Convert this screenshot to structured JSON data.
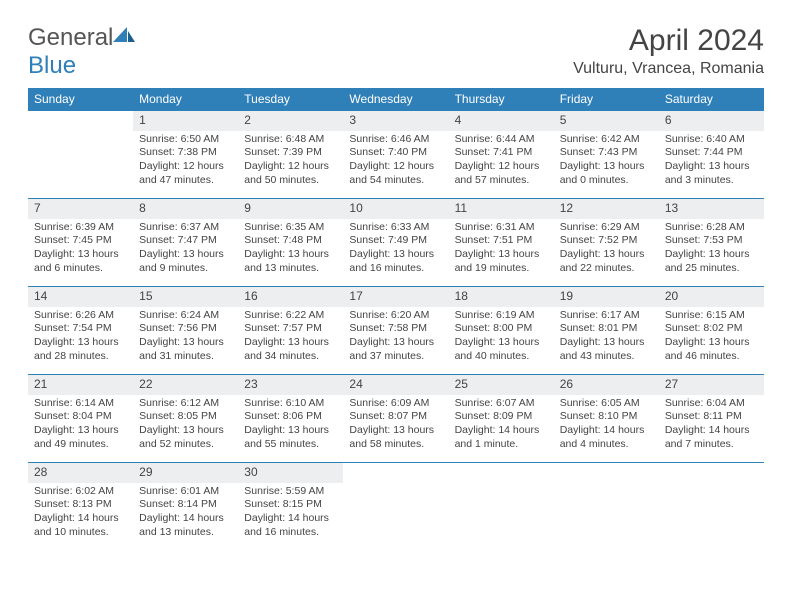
{
  "brand": {
    "part1": "General",
    "part2": "Blue"
  },
  "title": "April 2024",
  "location": "Vulturu, Vrancea, Romania",
  "colors": {
    "header_bg": "#2f7fb8",
    "header_fg": "#ffffff",
    "daynum_bg": "#eceeef",
    "border": "#2f7fb8",
    "text": "#444444",
    "page_bg": "#ffffff"
  },
  "weekdays": [
    "Sunday",
    "Monday",
    "Tuesday",
    "Wednesday",
    "Thursday",
    "Friday",
    "Saturday"
  ],
  "weeks": [
    [
      {
        "blank": true
      },
      {
        "n": "1",
        "sunrise": "6:50 AM",
        "sunset": "7:38 PM",
        "daylight": "12 hours and 47 minutes."
      },
      {
        "n": "2",
        "sunrise": "6:48 AM",
        "sunset": "7:39 PM",
        "daylight": "12 hours and 50 minutes."
      },
      {
        "n": "3",
        "sunrise": "6:46 AM",
        "sunset": "7:40 PM",
        "daylight": "12 hours and 54 minutes."
      },
      {
        "n": "4",
        "sunrise": "6:44 AM",
        "sunset": "7:41 PM",
        "daylight": "12 hours and 57 minutes."
      },
      {
        "n": "5",
        "sunrise": "6:42 AM",
        "sunset": "7:43 PM",
        "daylight": "13 hours and 0 minutes."
      },
      {
        "n": "6",
        "sunrise": "6:40 AM",
        "sunset": "7:44 PM",
        "daylight": "13 hours and 3 minutes."
      }
    ],
    [
      {
        "n": "7",
        "sunrise": "6:39 AM",
        "sunset": "7:45 PM",
        "daylight": "13 hours and 6 minutes."
      },
      {
        "n": "8",
        "sunrise": "6:37 AM",
        "sunset": "7:47 PM",
        "daylight": "13 hours and 9 minutes."
      },
      {
        "n": "9",
        "sunrise": "6:35 AM",
        "sunset": "7:48 PM",
        "daylight": "13 hours and 13 minutes."
      },
      {
        "n": "10",
        "sunrise": "6:33 AM",
        "sunset": "7:49 PM",
        "daylight": "13 hours and 16 minutes."
      },
      {
        "n": "11",
        "sunrise": "6:31 AM",
        "sunset": "7:51 PM",
        "daylight": "13 hours and 19 minutes."
      },
      {
        "n": "12",
        "sunrise": "6:29 AM",
        "sunset": "7:52 PM",
        "daylight": "13 hours and 22 minutes."
      },
      {
        "n": "13",
        "sunrise": "6:28 AM",
        "sunset": "7:53 PM",
        "daylight": "13 hours and 25 minutes."
      }
    ],
    [
      {
        "n": "14",
        "sunrise": "6:26 AM",
        "sunset": "7:54 PM",
        "daylight": "13 hours and 28 minutes."
      },
      {
        "n": "15",
        "sunrise": "6:24 AM",
        "sunset": "7:56 PM",
        "daylight": "13 hours and 31 minutes."
      },
      {
        "n": "16",
        "sunrise": "6:22 AM",
        "sunset": "7:57 PM",
        "daylight": "13 hours and 34 minutes."
      },
      {
        "n": "17",
        "sunrise": "6:20 AM",
        "sunset": "7:58 PM",
        "daylight": "13 hours and 37 minutes."
      },
      {
        "n": "18",
        "sunrise": "6:19 AM",
        "sunset": "8:00 PM",
        "daylight": "13 hours and 40 minutes."
      },
      {
        "n": "19",
        "sunrise": "6:17 AM",
        "sunset": "8:01 PM",
        "daylight": "13 hours and 43 minutes."
      },
      {
        "n": "20",
        "sunrise": "6:15 AM",
        "sunset": "8:02 PM",
        "daylight": "13 hours and 46 minutes."
      }
    ],
    [
      {
        "n": "21",
        "sunrise": "6:14 AM",
        "sunset": "8:04 PM",
        "daylight": "13 hours and 49 minutes."
      },
      {
        "n": "22",
        "sunrise": "6:12 AM",
        "sunset": "8:05 PM",
        "daylight": "13 hours and 52 minutes."
      },
      {
        "n": "23",
        "sunrise": "6:10 AM",
        "sunset": "8:06 PM",
        "daylight": "13 hours and 55 minutes."
      },
      {
        "n": "24",
        "sunrise": "6:09 AM",
        "sunset": "8:07 PM",
        "daylight": "13 hours and 58 minutes."
      },
      {
        "n": "25",
        "sunrise": "6:07 AM",
        "sunset": "8:09 PM",
        "daylight": "14 hours and 1 minute."
      },
      {
        "n": "26",
        "sunrise": "6:05 AM",
        "sunset": "8:10 PM",
        "daylight": "14 hours and 4 minutes."
      },
      {
        "n": "27",
        "sunrise": "6:04 AM",
        "sunset": "8:11 PM",
        "daylight": "14 hours and 7 minutes."
      }
    ],
    [
      {
        "n": "28",
        "sunrise": "6:02 AM",
        "sunset": "8:13 PM",
        "daylight": "14 hours and 10 minutes."
      },
      {
        "n": "29",
        "sunrise": "6:01 AM",
        "sunset": "8:14 PM",
        "daylight": "14 hours and 13 minutes."
      },
      {
        "n": "30",
        "sunrise": "5:59 AM",
        "sunset": "8:15 PM",
        "daylight": "14 hours and 16 minutes."
      },
      {
        "blank": true
      },
      {
        "blank": true
      },
      {
        "blank": true
      },
      {
        "blank": true
      }
    ]
  ],
  "labels": {
    "sunrise": "Sunrise:",
    "sunset": "Sunset:",
    "daylight": "Daylight:"
  }
}
